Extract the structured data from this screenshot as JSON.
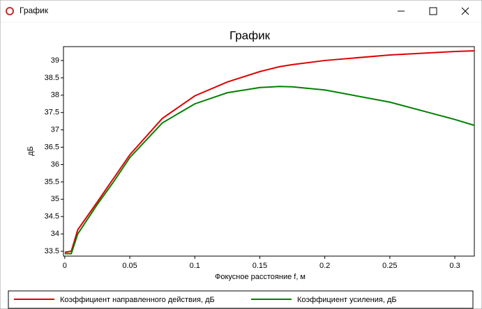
{
  "window": {
    "title": "График"
  },
  "chart_data": {
    "type": "line",
    "title": "График",
    "x_label": "Фокусное расстояние f, м",
    "y_label": "дБ",
    "x": [
      0,
      0.005,
      0.01,
      0.025,
      0.0375,
      0.05,
      0.075,
      0.1,
      0.125,
      0.15,
      0.165,
      0.175,
      0.2,
      0.25,
      0.3,
      0.315
    ],
    "series": [
      {
        "name": "Коэффициент направленного действия, дБ",
        "color": "#e00000",
        "values": [
          33.47,
          33.5,
          34.12,
          34.92,
          35.6,
          36.28,
          37.33,
          37.98,
          38.38,
          38.68,
          38.82,
          38.88,
          39.0,
          39.16,
          39.26,
          39.28
        ]
      },
      {
        "name": "Коэффициент усиления, дБ",
        "color": "#008000",
        "values": [
          33.43,
          33.43,
          34.0,
          34.85,
          35.5,
          36.2,
          37.2,
          37.75,
          38.07,
          38.22,
          38.25,
          38.24,
          38.15,
          37.8,
          37.3,
          37.13
        ]
      }
    ],
    "xlim": [
      -0.001,
      0.315
    ],
    "ylim": [
      33.36,
      39.4
    ],
    "xticks": [
      0,
      0.05,
      0.1,
      0.15,
      0.2,
      0.25,
      0.3
    ],
    "yticks": [
      33.5,
      34,
      34.5,
      35,
      35.5,
      36,
      36.5,
      37,
      37.5,
      38,
      38.5,
      39
    ],
    "legend": "bottom"
  }
}
